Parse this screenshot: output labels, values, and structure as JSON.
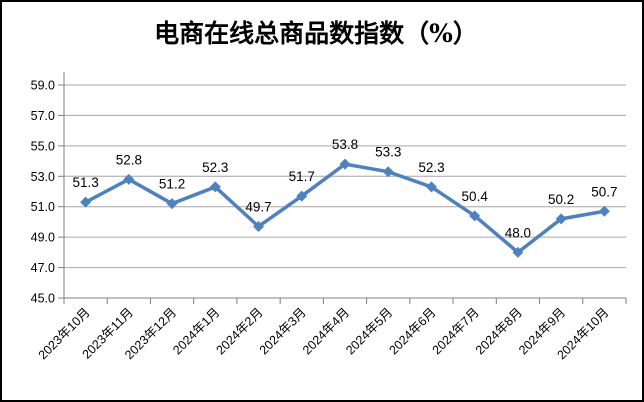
{
  "title": "电商在线总商品数指数（%）",
  "colors": {
    "line": "#4F81BD",
    "marker": "#4F81BD",
    "gridline": "#A6A6A6",
    "axis": "#808080",
    "text": "#000000",
    "background": "#FFFFFF",
    "border": "#000000"
  },
  "chart_data": {
    "type": "line",
    "title": "电商在线总商品数指数（%）",
    "categories": [
      "2023年10月",
      "2023年11月",
      "2023年12月",
      "2024年1月",
      "2024年2月",
      "2024年3月",
      "2024年4月",
      "2024年5月",
      "2024年6月",
      "2024年7月",
      "2024年8月",
      "2024年9月",
      "2024年10月"
    ],
    "values": [
      51.3,
      52.8,
      51.2,
      52.3,
      49.7,
      51.7,
      53.8,
      53.3,
      52.3,
      50.4,
      48.0,
      50.2,
      50.7
    ],
    "value_labels": [
      "51.3",
      "52.8",
      "51.2",
      "52.3",
      "49.7",
      "51.7",
      "53.8",
      "53.3",
      "52.3",
      "50.4",
      "48.0",
      "50.2",
      "50.7"
    ],
    "xlabel": "",
    "ylabel": "",
    "ylim": [
      45.0,
      59.0
    ],
    "ytick_step": 2.0,
    "ytick_labels": [
      "45.0",
      "47.0",
      "49.0",
      "51.0",
      "53.0",
      "55.0",
      "57.0",
      "59.0"
    ],
    "grid": "horizontal",
    "legend": "none",
    "marker": "diamond",
    "data_labels": "above"
  }
}
